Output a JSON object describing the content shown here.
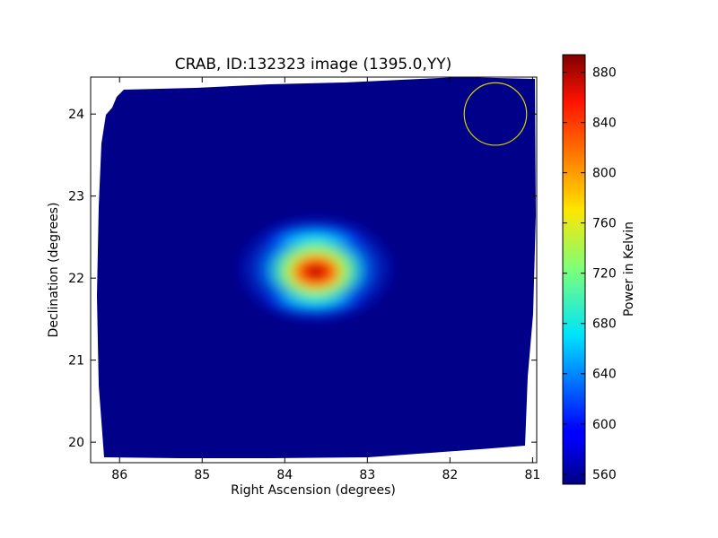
{
  "chart_data": {
    "type": "heatmap",
    "title": "CRAB, ID:132323 image (1395.0,YY)",
    "xlabel": "Right Ascension (degrees)",
    "ylabel": "Declination (degrees)",
    "xlim": [
      86.35,
      80.95
    ],
    "ylim": [
      19.75,
      24.45
    ],
    "x_ticks": [
      "86",
      "85",
      "84",
      "83",
      "82",
      "81"
    ],
    "x_tick_values": [
      86,
      85,
      84,
      83,
      82,
      81
    ],
    "y_ticks": [
      "20",
      "21",
      "22",
      "23",
      "24"
    ],
    "y_tick_values": [
      20,
      21,
      22,
      23,
      24
    ],
    "grid": false,
    "colormap": "jet",
    "colorbar": {
      "label": "Power in Kelvin",
      "range": [
        552,
        894
      ],
      "ticks": [
        "560",
        "600",
        "640",
        "680",
        "720",
        "760",
        "800",
        "840",
        "880"
      ],
      "tick_values": [
        560,
        600,
        640,
        680,
        720,
        760,
        800,
        840,
        880
      ]
    },
    "background_level": 560,
    "source": {
      "ra": 83.63,
      "dec": 22.01,
      "peak": 894
    },
    "circle_annotation": {
      "ra": 81.45,
      "dec": 24.0,
      "radius_deg": 0.38,
      "color": "#d4d400"
    }
  }
}
